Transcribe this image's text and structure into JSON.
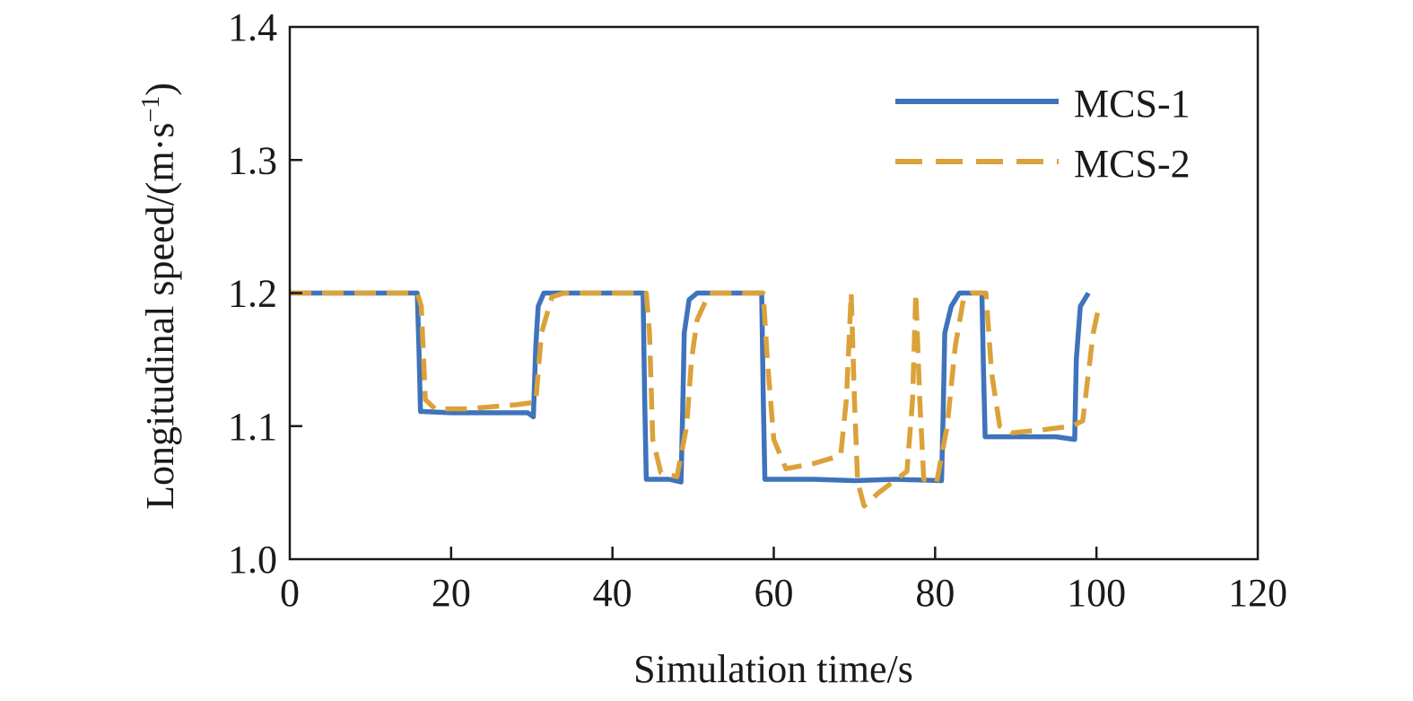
{
  "chart_data": {
    "type": "line",
    "xlabel": "Simulation time/s",
    "ylabel_main": "Longitudinal speed/(m·s",
    "ylabel_sup": "−1",
    "ylabel_close": ")",
    "xlim": [
      0,
      120
    ],
    "ylim": [
      1.0,
      1.4
    ],
    "x_ticks": [
      0,
      20,
      40,
      60,
      80,
      100,
      120
    ],
    "x_tick_labels": [
      "0",
      "20",
      "40",
      "60",
      "80",
      "100",
      "120"
    ],
    "y_ticks": [
      1.0,
      1.1,
      1.2,
      1.3,
      1.4
    ],
    "y_tick_labels": [
      "1.0",
      "1.1",
      "1.2",
      "1.3",
      "1.4"
    ],
    "grid": false,
    "legend_position": "top-right",
    "series": [
      {
        "name": "MCS-1",
        "color": "#3f73bb",
        "dash": "solid",
        "points": [
          [
            0,
            1.2
          ],
          [
            15.8,
            1.2
          ],
          [
            16.0,
            1.16
          ],
          [
            16.2,
            1.111
          ],
          [
            20,
            1.11
          ],
          [
            25,
            1.11
          ],
          [
            29.5,
            1.11
          ],
          [
            30.2,
            1.107
          ],
          [
            30.5,
            1.16
          ],
          [
            30.8,
            1.19
          ],
          [
            31.5,
            1.2
          ],
          [
            43.8,
            1.2
          ],
          [
            44.0,
            1.12
          ],
          [
            44.2,
            1.06
          ],
          [
            47,
            1.06
          ],
          [
            48.5,
            1.058
          ],
          [
            48.7,
            1.11
          ],
          [
            48.9,
            1.17
          ],
          [
            49.5,
            1.195
          ],
          [
            50.5,
            1.2
          ],
          [
            58.5,
            1.2
          ],
          [
            58.7,
            1.12
          ],
          [
            58.9,
            1.06
          ],
          [
            65,
            1.06
          ],
          [
            70,
            1.059
          ],
          [
            75,
            1.06
          ],
          [
            80.8,
            1.059
          ],
          [
            81.0,
            1.11
          ],
          [
            81.2,
            1.17
          ],
          [
            82,
            1.19
          ],
          [
            83,
            1.2
          ],
          [
            85.8,
            1.2
          ],
          [
            86.0,
            1.14
          ],
          [
            86.2,
            1.092
          ],
          [
            90,
            1.092
          ],
          [
            95,
            1.092
          ],
          [
            97.3,
            1.09
          ],
          [
            97.5,
            1.15
          ],
          [
            98,
            1.19
          ],
          [
            99,
            1.2
          ]
        ]
      },
      {
        "name": "MCS-2",
        "color": "#dba23a",
        "dash": "dashed",
        "points": [
          [
            0,
            1.2
          ],
          [
            15.8,
            1.2
          ],
          [
            16.3,
            1.19
          ],
          [
            16.8,
            1.12
          ],
          [
            18,
            1.113
          ],
          [
            22,
            1.113
          ],
          [
            28,
            1.116
          ],
          [
            30.5,
            1.118
          ],
          [
            31.2,
            1.17
          ],
          [
            32.5,
            1.197
          ],
          [
            34,
            1.2
          ],
          [
            44.2,
            1.2
          ],
          [
            44.6,
            1.17
          ],
          [
            45,
            1.09
          ],
          [
            46,
            1.065
          ],
          [
            48,
            1.062
          ],
          [
            49.2,
            1.1
          ],
          [
            49.8,
            1.15
          ],
          [
            50.5,
            1.18
          ],
          [
            52,
            1.2
          ],
          [
            58.7,
            1.2
          ],
          [
            59.2,
            1.15
          ],
          [
            60,
            1.09
          ],
          [
            61.5,
            1.068
          ],
          [
            65,
            1.072
          ],
          [
            68.3,
            1.078
          ],
          [
            69.0,
            1.12
          ],
          [
            69.6,
            1.2
          ],
          [
            70.0,
            1.12
          ],
          [
            70.4,
            1.058
          ],
          [
            71.2,
            1.04
          ],
          [
            73,
            1.05
          ],
          [
            76.5,
            1.066
          ],
          [
            77.2,
            1.12
          ],
          [
            77.6,
            1.2
          ],
          [
            78.1,
            1.12
          ],
          [
            78.6,
            1.06
          ],
          [
            80.2,
            1.058
          ],
          [
            81.5,
            1.1
          ],
          [
            82.5,
            1.16
          ],
          [
            83.5,
            1.195
          ],
          [
            84.5,
            1.2
          ],
          [
            86.3,
            1.2
          ],
          [
            87.0,
            1.14
          ],
          [
            88,
            1.1
          ],
          [
            89.5,
            1.095
          ],
          [
            93,
            1.097
          ],
          [
            97,
            1.1
          ],
          [
            98.3,
            1.104
          ],
          [
            99,
            1.14
          ],
          [
            99.6,
            1.17
          ],
          [
            100.3,
            1.19
          ]
        ]
      }
    ]
  }
}
